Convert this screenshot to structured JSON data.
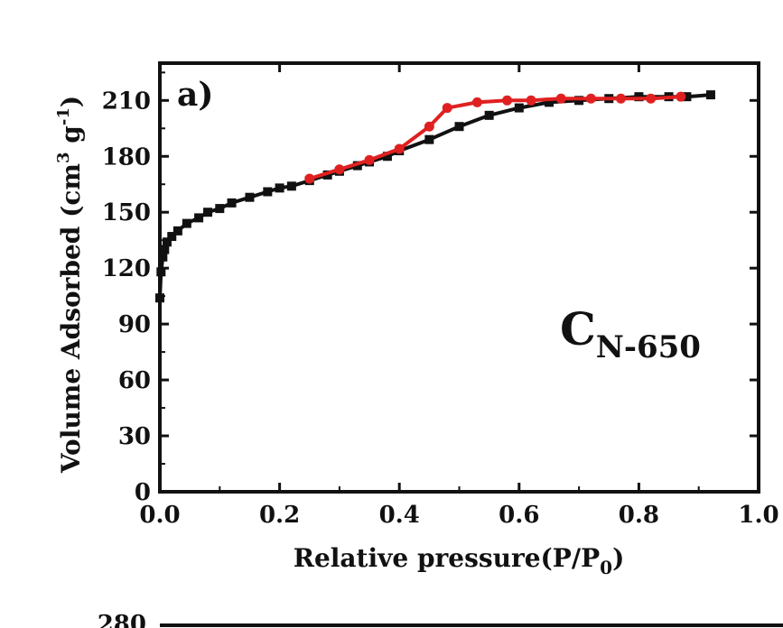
{
  "chart_data": {
    "type": "line",
    "panel_label": "a)",
    "annotation": {
      "main": "C",
      "subscript": "N-650"
    },
    "xlabel": "Relative pressure(P/P0)",
    "xlabel_parts": {
      "main": "Relative pressure(P/P",
      "sub": "0",
      "end": ")"
    },
    "ylabel": "Volume Adsorbed (cm3 g-1)",
    "ylabel_parts": {
      "main": "Volume Adsorbed (cm",
      "sup1": "3",
      "mid": " g",
      "sup2": "-1",
      "end": ")"
    },
    "xlim": [
      0.0,
      1.0
    ],
    "ylim": [
      0,
      230
    ],
    "x_ticks": [
      0.0,
      0.2,
      0.4,
      0.6,
      0.8,
      1.0
    ],
    "x_tick_labels": [
      "0.0",
      "0.2",
      "0.4",
      "0.6",
      "0.8",
      "1.0"
    ],
    "y_ticks": [
      0,
      30,
      60,
      90,
      120,
      150,
      180,
      210
    ],
    "y_tick_labels": [
      "0",
      "30",
      "60",
      "90",
      "120",
      "150",
      "180",
      "210"
    ],
    "grid": false,
    "series": [
      {
        "color": "#111111",
        "marker": "square",
        "x": [
          0.0,
          0.002,
          0.005,
          0.008,
          0.012,
          0.02,
          0.03,
          0.045,
          0.065,
          0.08,
          0.1,
          0.12,
          0.15,
          0.18,
          0.2,
          0.22,
          0.25,
          0.28,
          0.3,
          0.33,
          0.35,
          0.38,
          0.4,
          0.45,
          0.5,
          0.55,
          0.6,
          0.65,
          0.7,
          0.75,
          0.8,
          0.85,
          0.88,
          0.92
        ],
        "y": [
          104,
          118,
          126,
          130,
          134,
          137,
          140,
          144,
          147,
          150,
          152,
          155,
          158,
          161,
          163,
          164,
          167,
          170,
          172,
          175,
          177,
          180,
          183,
          189,
          196,
          202,
          206,
          209,
          210,
          211,
          212,
          212,
          212,
          213
        ]
      },
      {
        "color": "#e02020",
        "marker": "circle",
        "x": [
          0.25,
          0.3,
          0.35,
          0.4,
          0.45,
          0.48,
          0.53,
          0.58,
          0.62,
          0.67,
          0.72,
          0.77,
          0.82,
          0.87
        ],
        "y": [
          168,
          173,
          178,
          184,
          196,
          206,
          209,
          210,
          210,
          211,
          211,
          211,
          211,
          212
        ]
      }
    ],
    "second_panel_partial": {
      "y_tick_label": "280"
    }
  }
}
